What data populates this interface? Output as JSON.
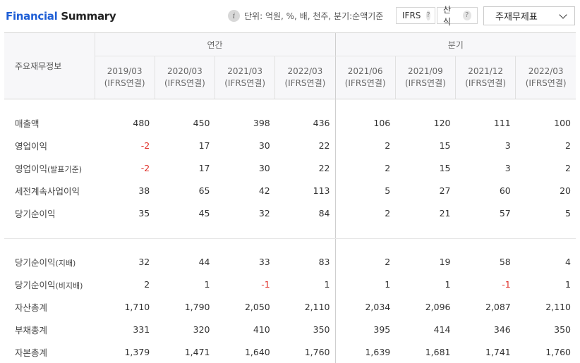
{
  "header": {
    "title_part1": "Financial",
    "title_part2": "Summary",
    "unit_text": "단위: 억원, %, 배, 천주, 분기:순액기준",
    "ifrs_label": "IFRS",
    "calc_label": "산식",
    "help_glyph": "?",
    "dropdown_value": "주재무제표",
    "icons": {
      "info": "info-icon",
      "help": "question-icon",
      "dropdown": "chevron-down-icon"
    }
  },
  "table": {
    "row_header_label": "주요재무정보",
    "groups": [
      {
        "label": "연간"
      },
      {
        "label": "분기"
      }
    ],
    "columns": [
      {
        "date": "2019/03",
        "basis": "(IFRS연결)"
      },
      {
        "date": "2020/03",
        "basis": "(IFRS연결)"
      },
      {
        "date": "2021/03",
        "basis": "(IFRS연결)"
      },
      {
        "date": "2022/03",
        "basis": "(IFRS연결)"
      },
      {
        "date": "2021/06",
        "basis": "(IFRS연결)"
      },
      {
        "date": "2021/09",
        "basis": "(IFRS연결)"
      },
      {
        "date": "2021/12",
        "basis": "(IFRS연결)"
      },
      {
        "date": "2022/03",
        "basis": "(IFRS연결)"
      }
    ],
    "rows": [
      {
        "label": "매출액",
        "values": [
          "480",
          "450",
          "398",
          "436",
          "106",
          "120",
          "111",
          "100"
        ]
      },
      {
        "label": "영업이익",
        "values": [
          "-2",
          "17",
          "30",
          "22",
          "2",
          "15",
          "3",
          "2"
        ]
      },
      {
        "label": "영업이익",
        "sub": "(발표기준)",
        "values": [
          "-2",
          "17",
          "30",
          "22",
          "2",
          "15",
          "3",
          "2"
        ]
      },
      {
        "label": "세전계속사업이익",
        "values": [
          "38",
          "65",
          "42",
          "113",
          "5",
          "27",
          "60",
          "20"
        ]
      },
      {
        "label": "당기순이익",
        "values": [
          "35",
          "45",
          "32",
          "84",
          "2",
          "21",
          "57",
          "5"
        ]
      },
      {
        "label": "당기순이익",
        "sub": "(지배)",
        "values": [
          "32",
          "44",
          "33",
          "83",
          "2",
          "19",
          "58",
          "4"
        ]
      },
      {
        "label": "당기순이익",
        "sub": "(비지배)",
        "values": [
          "2",
          "1",
          "-1",
          "1",
          "1",
          "1",
          "-1",
          "1"
        ]
      },
      {
        "label": "자산총계",
        "values": [
          "1,710",
          "1,790",
          "2,050",
          "2,110",
          "2,034",
          "2,096",
          "2,087",
          "2,110"
        ]
      },
      {
        "label": "부채총계",
        "values": [
          "331",
          "320",
          "410",
          "350",
          "395",
          "414",
          "346",
          "350"
        ]
      },
      {
        "label": "자본총계",
        "values": [
          "1,379",
          "1,471",
          "1,640",
          "1,760",
          "1,639",
          "1,681",
          "1,741",
          "1,760"
        ]
      }
    ]
  },
  "colors": {
    "title_accent": "#1f5fd6",
    "negative": "#e0312a",
    "header_bg": "#f7f7f9"
  }
}
